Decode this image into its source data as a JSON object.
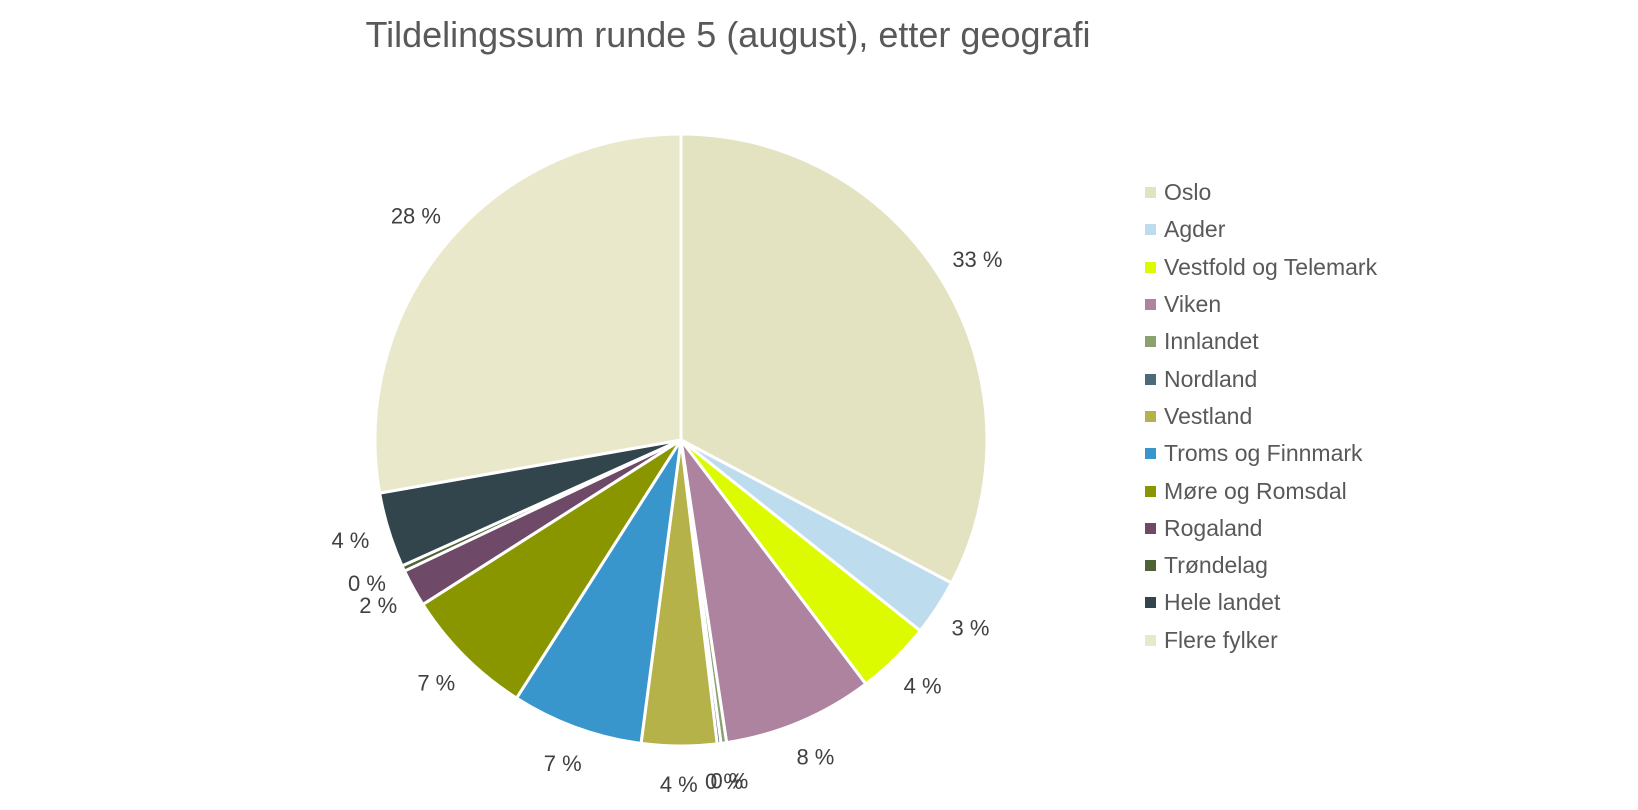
{
  "chart_data": {
    "type": "pie",
    "title": "Tildelingssum runde 5 (august), etter geografi",
    "legend_position": "right",
    "slices": [
      {
        "name": "Oslo",
        "value": 33,
        "label": "33 %",
        "color": "#E3E3C1"
      },
      {
        "name": "Agder",
        "value": 3,
        "label": "3 %",
        "color": "#BDDCEE"
      },
      {
        "name": "Vestfold og Telemark",
        "value": 4,
        "label": "4 %",
        "color": "#DDFB00"
      },
      {
        "name": "Viken",
        "value": 8,
        "label": "8 %",
        "color": "#AD839F"
      },
      {
        "name": "Innlandet",
        "value": 0.3,
        "label": "0 %",
        "color": "#8BA16E"
      },
      {
        "name": "Nordland",
        "value": 0.2,
        "label": "0 %",
        "color": "#4C6A7A"
      },
      {
        "name": "Vestland",
        "value": 4,
        "label": "4 %",
        "color": "#B5B249"
      },
      {
        "name": "Troms og Finnmark",
        "value": 7,
        "label": "7 %",
        "color": "#3896CD"
      },
      {
        "name": "Møre og Romsdal",
        "value": 7,
        "label": "7 %",
        "color": "#899600"
      },
      {
        "name": "Rogaland",
        "value": 2,
        "label": "2 %",
        "color": "#6E4A68"
      },
      {
        "name": "Trøndelag",
        "value": 0.3,
        "label": "0 %",
        "color": "#4E6236"
      },
      {
        "name": "Hele landet",
        "value": 4,
        "label": "4 %",
        "color": "#32454D"
      },
      {
        "name": "Flere fylker",
        "value": 28,
        "label": "28 %",
        "color": "#EAE8CB"
      }
    ]
  }
}
